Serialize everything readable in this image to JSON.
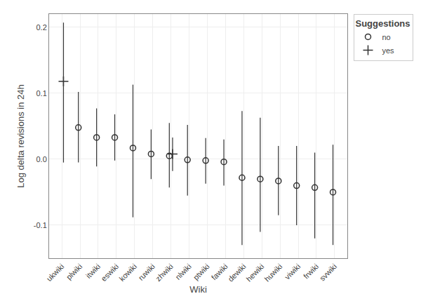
{
  "chart_data": {
    "type": "scatter",
    "xlabel": "Wiki",
    "ylabel": "Log delta revisions in 24h",
    "legend_title": "Suggestions",
    "legend": "right",
    "grid": true,
    "color": "#333333",
    "categories": [
      "ukwiki",
      "plwiki",
      "itwiki",
      "eswiki",
      "kowiki",
      "ruwiki",
      "zhwiki",
      "nlwiki",
      "ptwiki",
      "fawiki",
      "dewiki",
      "hewiki",
      "huwiki",
      "viwiki",
      "frwiki",
      "svwiki"
    ],
    "series": [
      {
        "name": "no",
        "marker": "circle",
        "values": [
          null,
          0.048,
          0.033,
          0.033,
          0.017,
          0.008,
          0.005,
          -0.001,
          -0.002,
          -0.004,
          -0.028,
          -0.03,
          -0.033,
          -0.04,
          -0.043,
          -0.05
        ],
        "upper": [
          null,
          0.102,
          0.077,
          0.068,
          0.113,
          0.045,
          0.055,
          0.052,
          0.032,
          0.03,
          0.073,
          0.063,
          0.02,
          0.02,
          0.01,
          0.022
        ],
        "lower": [
          null,
          -0.005,
          -0.011,
          -0.002,
          -0.088,
          -0.03,
          -0.043,
          -0.055,
          -0.037,
          -0.04,
          -0.13,
          -0.11,
          -0.085,
          -0.1,
          -0.12,
          -0.13
        ]
      },
      {
        "name": "yes",
        "marker": "plus",
        "values": [
          0.118,
          null,
          null,
          null,
          null,
          null,
          0.008,
          null,
          null,
          null,
          null,
          null,
          null,
          null,
          null,
          null
        ],
        "upper": [
          0.207,
          null,
          null,
          null,
          null,
          null,
          0.033,
          null,
          null,
          null,
          null,
          null,
          null,
          null,
          null,
          null
        ],
        "lower": [
          -0.005,
          null,
          null,
          null,
          null,
          null,
          -0.018,
          null,
          null,
          null,
          null,
          null,
          null,
          null,
          null,
          null
        ]
      }
    ],
    "ylim": [
      -0.15,
      0.22
    ],
    "yticks": [
      -0.1,
      {
        "value": 0.0,
        "label": "0.0"
      },
      0.1,
      0.2
    ]
  }
}
